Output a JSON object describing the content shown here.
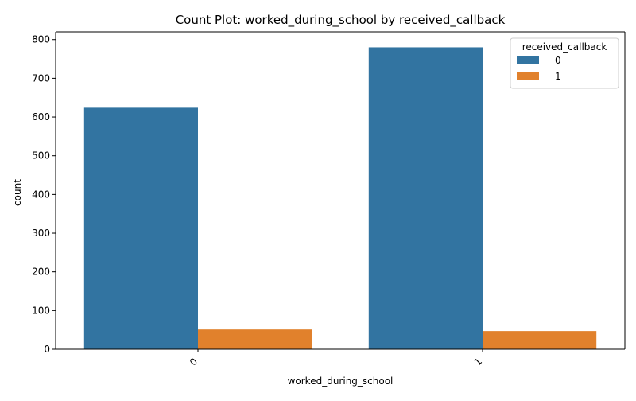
{
  "chart_data": {
    "type": "bar",
    "title": "Count Plot: worked_during_school by received_callback",
    "xlabel": "worked_during_school",
    "ylabel": "count",
    "categories": [
      "0",
      "1"
    ],
    "ylim": [
      0,
      820
    ],
    "yticks": [
      0,
      100,
      200,
      300,
      400,
      500,
      600,
      700,
      800
    ],
    "legend": {
      "title": "received_callback",
      "position": "top-right"
    },
    "series": [
      {
        "name": "0",
        "color": "#3274a1",
        "values": [
          624,
          780
        ]
      },
      {
        "name": "1",
        "color": "#e1812c",
        "values": [
          51,
          47
        ]
      }
    ],
    "grid": false
  }
}
